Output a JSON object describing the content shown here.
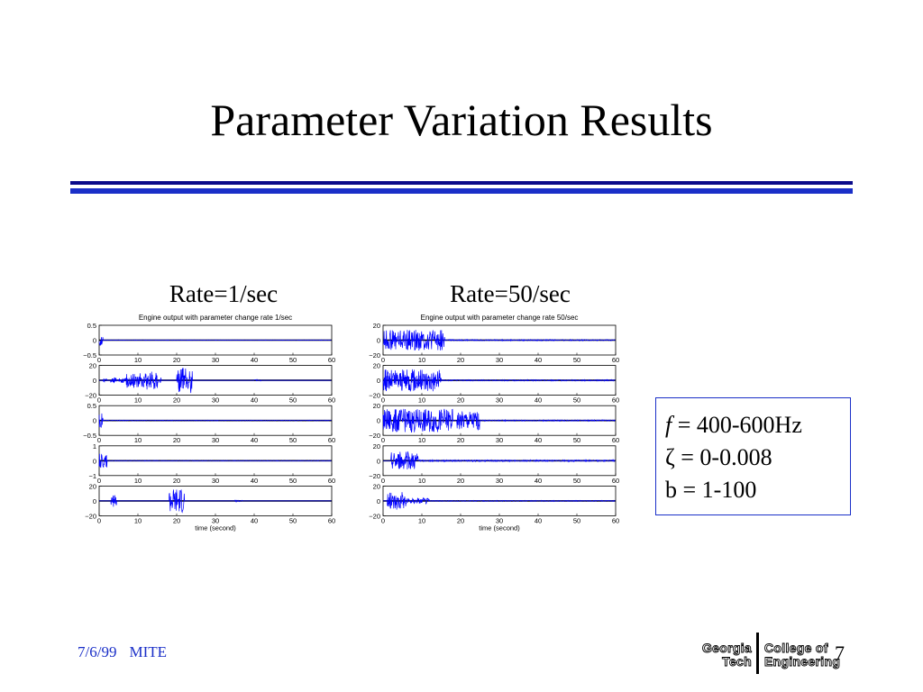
{
  "slide": {
    "title": "Parameter Variation Results",
    "colors": {
      "rule_dark": "#0a0a8a",
      "rule_light": "#1a2fc8",
      "signal": "#0000ff",
      "box_border": "#1a2fc8"
    }
  },
  "headings": {
    "left": "Rate=1/sec",
    "right": "Rate=50/sec"
  },
  "params": {
    "f_symbol": "f",
    "f_value": " = 400-600Hz",
    "zeta_symbol": "ζ",
    "zeta_value": " = 0-0.008",
    "b_line": "b = 1-100"
  },
  "footer": {
    "date": "7/6/99",
    "org": "MITE",
    "page_number": "7"
  },
  "logo": {
    "line1": "Georgia",
    "line2": "Tech",
    "line3": "College of",
    "line4": "Engineering"
  },
  "chart_data": [
    {
      "type": "line",
      "title": "Engine output with parameter change rate 1/sec",
      "xlabel": "time (second)",
      "x_ticks": [
        0,
        10,
        20,
        30,
        40,
        50,
        60
      ],
      "xlim": [
        0,
        60
      ],
      "subplots": [
        {
          "ylim": [
            -0.5,
            0.5
          ],
          "y_ticks": [
            "0.5",
            "0",
            "−0.5"
          ],
          "bursts": [
            {
              "x0": 0,
              "x1": 1,
              "amp": 0.45
            },
            {
              "x0": 1,
              "x1": 60,
              "amp": 0.015
            }
          ]
        },
        {
          "ylim": [
            -20,
            20
          ],
          "y_ticks": [
            "20",
            "0",
            "−20"
          ],
          "bursts": [
            {
              "x0": 1,
              "x1": 2,
              "amp": 0.15
            },
            {
              "x0": 3,
              "x1": 4.5,
              "amp": 0.2
            },
            {
              "x0": 5,
              "x1": 7,
              "amp": 0.15
            },
            {
              "x0": 7,
              "x1": 12,
              "amp": 0.5
            },
            {
              "x0": 12,
              "x1": 15,
              "amp": 0.7
            },
            {
              "x0": 15,
              "x1": 16,
              "amp": 0.2
            },
            {
              "x0": 20,
              "x1": 24,
              "amp": 0.85
            },
            {
              "x0": 40,
              "x1": 42,
              "amp": 0.05
            }
          ]
        },
        {
          "ylim": [
            -0.5,
            0.5
          ],
          "y_ticks": [
            "0.5",
            "0",
            "−0.5"
          ],
          "bursts": [
            {
              "x0": 0,
              "x1": 1,
              "amp": 0.5
            },
            {
              "x0": 1,
              "x1": 60,
              "amp": 0.02
            }
          ]
        },
        {
          "ylim": [
            -1,
            1
          ],
          "y_ticks": [
            "1",
            "0",
            "−1"
          ],
          "bursts": [
            {
              "x0": 0,
              "x1": 2,
              "amp": 0.5
            },
            {
              "x0": 2,
              "x1": 60,
              "amp": 0.02
            }
          ]
        },
        {
          "ylim": [
            -20,
            20
          ],
          "y_ticks": [
            "20",
            "0",
            "−20"
          ],
          "bursts": [
            {
              "x0": 3,
              "x1": 4.5,
              "amp": 0.4
            },
            {
              "x0": 18,
              "x1": 22,
              "amp": 0.85
            },
            {
              "x0": 35,
              "x1": 37,
              "amp": 0.05
            }
          ]
        }
      ]
    },
    {
      "type": "line",
      "title": "Engine output with parameter change rate 50/sec",
      "xlabel": "time (second)",
      "x_ticks": [
        0,
        10,
        20,
        30,
        40,
        50,
        60
      ],
      "xlim": [
        0,
        60
      ],
      "subplots": [
        {
          "ylim": [
            -20,
            20
          ],
          "y_ticks": [
            "20",
            "0",
            "−20"
          ],
          "bursts": [
            {
              "x0": 0,
              "x1": 16,
              "amp": 0.7
            },
            {
              "x0": 16,
              "x1": 60,
              "amp": 0.04
            }
          ]
        },
        {
          "ylim": [
            -20,
            20
          ],
          "y_ticks": [
            "20",
            "0",
            "−20"
          ],
          "bursts": [
            {
              "x0": 0,
              "x1": 15,
              "amp": 0.75
            },
            {
              "x0": 15,
              "x1": 60,
              "amp": 0.04
            }
          ]
        },
        {
          "ylim": [
            -20,
            20
          ],
          "y_ticks": [
            "20",
            "0",
            "−20"
          ],
          "bursts": [
            {
              "x0": 0,
              "x1": 18,
              "amp": 0.8
            },
            {
              "x0": 19,
              "x1": 25,
              "amp": 0.65
            },
            {
              "x0": 25,
              "x1": 60,
              "amp": 0.04
            }
          ]
        },
        {
          "ylim": [
            -20,
            20
          ],
          "y_ticks": [
            "20",
            "0",
            "−20"
          ],
          "bursts": [
            {
              "x0": 2,
              "x1": 9,
              "amp": 0.6
            },
            {
              "x0": 9,
              "x1": 60,
              "amp": 0.05
            }
          ]
        },
        {
          "ylim": [
            -20,
            20
          ],
          "y_ticks": [
            "20",
            "0",
            "−20"
          ],
          "bursts": [
            {
              "x0": 1,
              "x1": 6,
              "amp": 0.6
            },
            {
              "x0": 6,
              "x1": 12,
              "amp": 0.2
            },
            {
              "x0": 12,
              "x1": 60,
              "amp": 0.03
            }
          ]
        }
      ]
    }
  ]
}
